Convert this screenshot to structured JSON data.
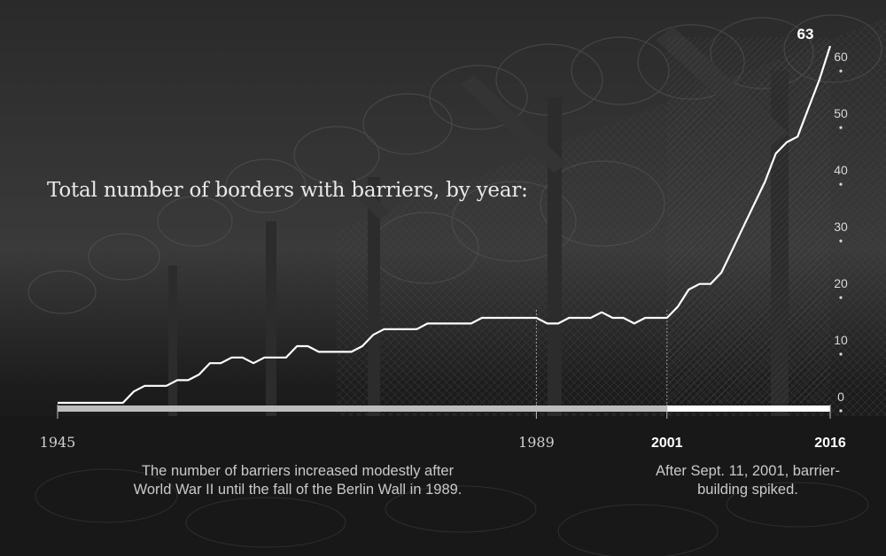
{
  "title": "Total number of borders with barriers, by year:",
  "notes": {
    "left": "The number of barriers increased modestly after World War II until the fall of the Berlin Wall in 1989.",
    "right": "After Sept. 11, 2001, barrier-building spiked."
  },
  "colors": {
    "background": "#1f1f1f",
    "line": "#ffffff",
    "axis_before": "#bdbdbd",
    "axis_after": "#ffffff",
    "text": "#d8d8d8"
  },
  "chart_data": {
    "type": "line",
    "title": "Total number of borders with barriers, by year:",
    "xlabel": "",
    "ylabel": "",
    "xlim": [
      1945,
      2016
    ],
    "ylim": [
      0,
      60
    ],
    "x_ticks": [
      {
        "year": 1945,
        "label": "1945",
        "bold": false
      },
      {
        "year": 1989,
        "label": "1989",
        "bold": false
      },
      {
        "year": 2001,
        "label": "2001",
        "bold": true
      },
      {
        "year": 2016,
        "label": "2016",
        "bold": true
      }
    ],
    "y_ticks": [
      0,
      10,
      20,
      30,
      40,
      50,
      60
    ],
    "end_label": "63",
    "highlight_from": 2001,
    "series": [
      {
        "x": [
          1945,
          1946,
          1947,
          1948,
          1949,
          1950,
          1951,
          1952,
          1953,
          1954,
          1955,
          1956,
          1957,
          1958,
          1959,
          1960,
          1961,
          1962,
          1963,
          1964,
          1965,
          1966,
          1967,
          1968,
          1969,
          1970,
          1971,
          1972,
          1973,
          1974,
          1975,
          1976,
          1977,
          1978,
          1979,
          1980,
          1981,
          1982,
          1983,
          1984,
          1985,
          1986,
          1987,
          1988,
          1989,
          1990,
          1991,
          1992,
          1993,
          1994,
          1995,
          1996,
          1997,
          1998,
          1999,
          2000,
          2001,
          2002,
          2003,
          2004,
          2005,
          2006,
          2007,
          2008,
          2009,
          2010,
          2011,
          2012,
          2013,
          2014,
          2015,
          2016
        ],
        "values": [
          0,
          0,
          0,
          0,
          0,
          0,
          0,
          2,
          3,
          3,
          3,
          4,
          4,
          5,
          7,
          7,
          8,
          8,
          7,
          8,
          8,
          8,
          10,
          10,
          9,
          9,
          9,
          9,
          10,
          12,
          13,
          13,
          13,
          13,
          14,
          14,
          14,
          14,
          14,
          15,
          15,
          15,
          15,
          15,
          15,
          14,
          14,
          15,
          15,
          15,
          16,
          15,
          15,
          14,
          15,
          15,
          15,
          17,
          20,
          21,
          21,
          23,
          27,
          31,
          35,
          39,
          44,
          46,
          47,
          52,
          57,
          63
        ]
      }
    ]
  }
}
